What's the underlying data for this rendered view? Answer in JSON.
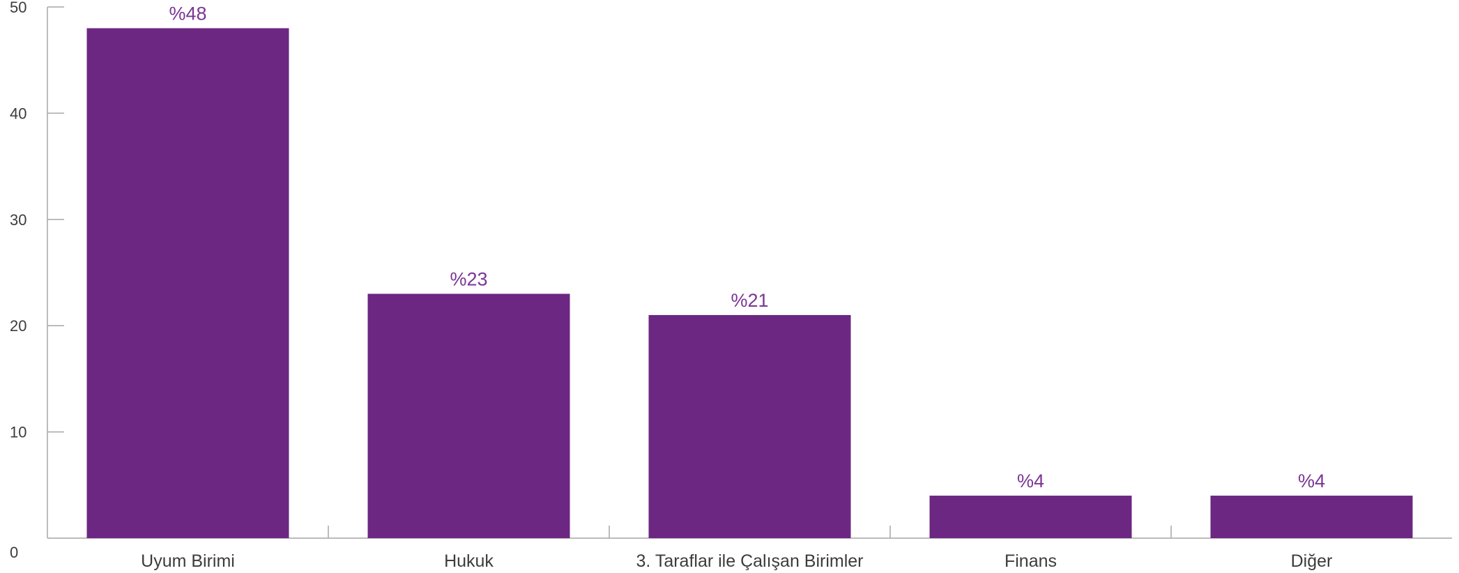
{
  "chart_data": {
    "type": "bar",
    "categories": [
      "Uyum Birimi",
      "Hukuk",
      "3. Taraflar ile Çalışan Birimler",
      "Finans",
      "Diğer"
    ],
    "values": [
      48,
      23,
      21,
      4,
      4
    ],
    "data_labels": [
      "%48",
      "%23",
      "%21",
      "%4",
      "%4"
    ],
    "y_ticks": [
      "0",
      "10",
      "20",
      "30",
      "40",
      "50"
    ],
    "ylim": [
      0,
      50
    ],
    "grid": false,
    "bar_color": "#6c2782",
    "label_color": "#7b3594",
    "axis_color": "#a6a6a6",
    "text_color": "#3c3c3c"
  }
}
